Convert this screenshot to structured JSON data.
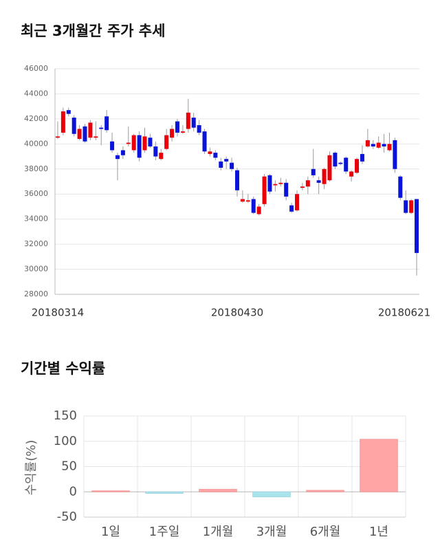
{
  "chart_data": [
    {
      "type": "candlestick",
      "title": "최근 3개월간 주가 추세",
      "categories": [
        "20180314",
        null,
        null,
        null,
        null,
        null,
        null,
        null,
        null,
        null,
        null,
        null,
        null,
        null,
        null,
        null,
        null,
        null,
        null,
        null,
        null,
        null,
        null,
        null,
        null,
        null,
        null,
        null,
        null,
        null,
        null,
        null,
        null,
        "20180430",
        null,
        null,
        null,
        null,
        null,
        null,
        null,
        null,
        null,
        null,
        null,
        null,
        null,
        null,
        null,
        null,
        null,
        null,
        null,
        null,
        null,
        null,
        null,
        null,
        null,
        null,
        null,
        null,
        null,
        null,
        null,
        null,
        "20180621"
      ],
      "open": [
        40500,
        40900,
        42700,
        42100,
        40400,
        41400,
        40500,
        40500,
        41300,
        42200,
        40200,
        39100,
        39500,
        40000,
        39500,
        40700,
        39500,
        40500,
        39800,
        38800,
        39600,
        40500,
        41800,
        40900,
        41200,
        42100,
        41500,
        41000,
        39200,
        39300,
        38600,
        38800,
        38500,
        37900,
        35400,
        35400,
        35600,
        34400,
        35200,
        37500,
        36700,
        36800,
        36900,
        35100,
        34700,
        36500,
        36600,
        38000,
        37100,
        36800,
        37100,
        39300,
        38500,
        38900,
        37400,
        37700,
        39200,
        39800,
        40000,
        39700,
        40000,
        39500,
        40300,
        37400,
        35500,
        34500,
        35600
      ],
      "high": [
        41800,
        42900,
        42900,
        42300,
        41500,
        41600,
        41900,
        41800,
        41500,
        42700,
        40900,
        39300,
        39800,
        41400,
        40800,
        41000,
        41300,
        40800,
        40200,
        39600,
        41200,
        41500,
        42000,
        41500,
        43600,
        42500,
        41900,
        41200,
        39700,
        39500,
        38900,
        39000,
        38900,
        38100,
        36300,
        36000,
        35800,
        35200,
        37600,
        37600,
        37100,
        37300,
        37200,
        35300,
        36300,
        36900,
        37400,
        39600,
        37400,
        38100,
        39400,
        39400,
        38600,
        39000,
        37900,
        38900,
        39900,
        41200,
        40300,
        40600,
        40800,
        40900,
        40500,
        37500,
        36300,
        35600,
        35600
      ],
      "low": [
        40400,
        40700,
        42200,
        40600,
        40300,
        40100,
        40300,
        40300,
        39900,
        40900,
        39300,
        37100,
        38800,
        39800,
        39300,
        38600,
        39300,
        39700,
        38700,
        38700,
        39500,
        40200,
        40600,
        40800,
        40900,
        41000,
        40700,
        39200,
        39000,
        38700,
        37900,
        38000,
        37800,
        35800,
        35300,
        35300,
        34400,
        34300,
        35000,
        36000,
        36200,
        36600,
        35500,
        34500,
        34600,
        36300,
        36000,
        37300,
        36000,
        36400,
        37000,
        38000,
        38300,
        37600,
        37000,
        37600,
        38400,
        39700,
        39600,
        39600,
        39300,
        39400,
        37700,
        35500,
        34400,
        34400,
        29500
      ],
      "close": [
        40600,
        42600,
        42400,
        40800,
        41200,
        40200,
        41700,
        40600,
        41200,
        41100,
        39500,
        38800,
        39100,
        40100,
        40700,
        38900,
        40600,
        39800,
        39000,
        39300,
        40700,
        41200,
        40900,
        41000,
        42500,
        41300,
        40900,
        39400,
        39400,
        38900,
        38100,
        38600,
        38000,
        36300,
        35600,
        35500,
        34500,
        35000,
        37400,
        36200,
        36800,
        36900,
        35800,
        34600,
        36000,
        36600,
        37100,
        37500,
        36900,
        38000,
        39100,
        38200,
        38400,
        37800,
        37800,
        38800,
        38600,
        40300,
        39800,
        40100,
        39800,
        40000,
        38000,
        35700,
        34500,
        35500,
        31300
      ],
      "up_color": "#e8000b",
      "down_color": "#0a14d8",
      "ylim": [
        28000,
        46000
      ],
      "yticks": [
        28000,
        30000,
        32000,
        34000,
        36000,
        38000,
        40000,
        42000,
        44000,
        46000
      ],
      "grid": true
    },
    {
      "type": "bar",
      "title": "기간별 수익률",
      "y_label": "수익률(%)",
      "categories": [
        "1일",
        "1주일",
        "1개월",
        "3개월",
        "6개월",
        "1년"
      ],
      "values": [
        2,
        -3,
        5,
        -10,
        3,
        104
      ],
      "positive_color": "#ffa5a5",
      "negative_color": "#a9e3ec",
      "ylim": [
        -50,
        150
      ],
      "yticks": [
        -50,
        0,
        50,
        100,
        150
      ],
      "grid": true
    }
  ]
}
